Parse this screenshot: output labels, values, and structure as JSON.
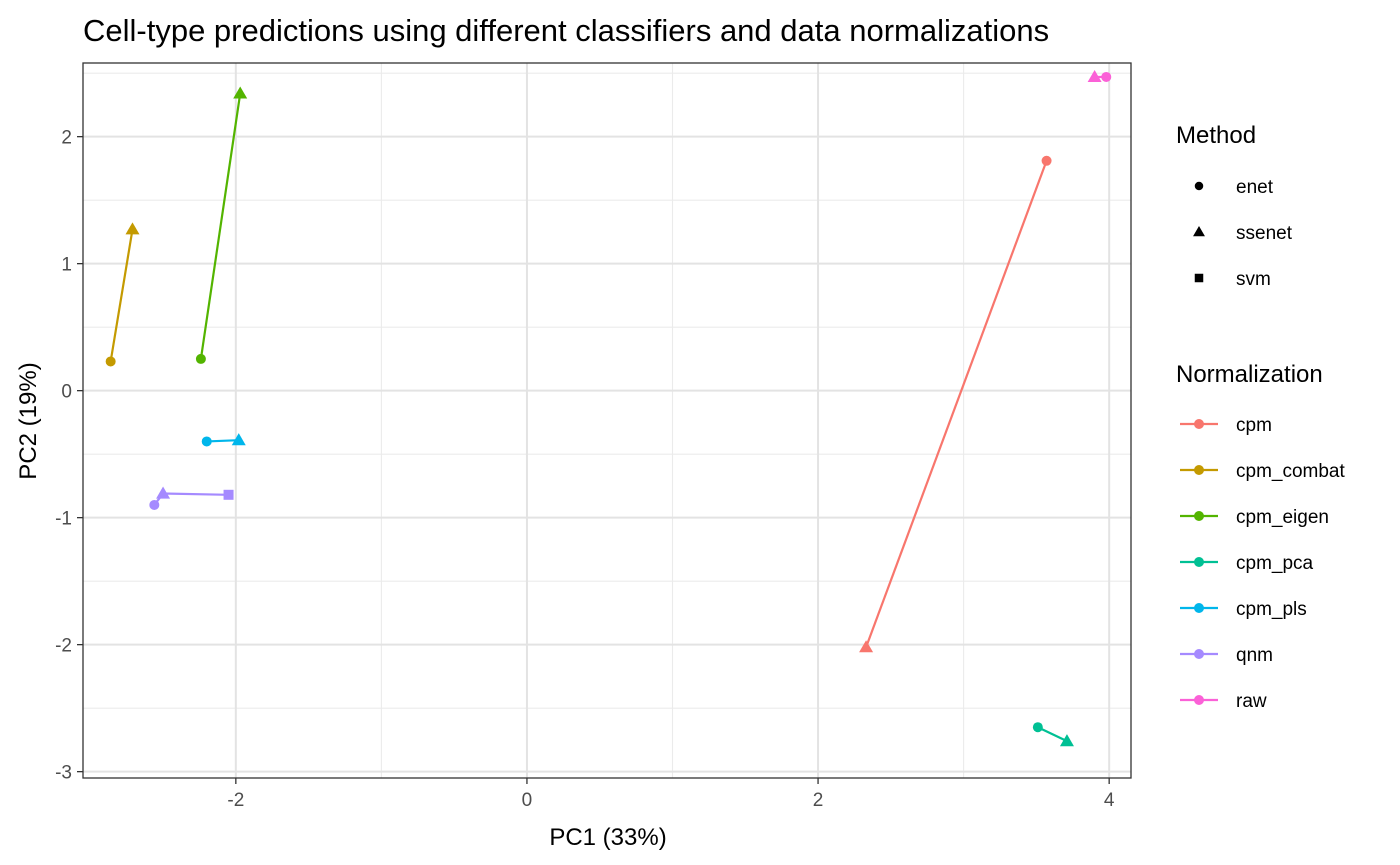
{
  "chart_data": {
    "type": "scatter",
    "title": "Cell-type predictions using different classifiers and data normalizations",
    "xlabel": "PC1 (33%)",
    "ylabel": "PC2 (19%)",
    "xlim": [
      -3.05,
      4.15
    ],
    "ylim": [
      -3.05,
      2.58
    ],
    "xticks": [
      -2,
      0,
      2,
      4
    ],
    "xtick_labels": [
      "-2",
      "0",
      "2",
      "4"
    ],
    "yticks": [
      -3,
      -2,
      -1,
      0,
      1,
      2
    ],
    "ytick_labels": [
      "-3",
      "-2",
      "-1",
      "0",
      "1",
      "2"
    ],
    "grid": true,
    "legend_position": "right",
    "legend_method_title": "Method",
    "legend_normalization_title": "Normalization",
    "methods": [
      {
        "name": "enet",
        "shape": "circle"
      },
      {
        "name": "ssenet",
        "shape": "triangle"
      },
      {
        "name": "svm",
        "shape": "square"
      }
    ],
    "series": [
      {
        "name": "cpm",
        "color": "#F8766D",
        "points": [
          {
            "method": "enet",
            "x": 3.57,
            "y": 1.81
          },
          {
            "method": "ssenet",
            "x": 2.33,
            "y": -2.02
          }
        ]
      },
      {
        "name": "cpm_combat",
        "color": "#C49A00",
        "points": [
          {
            "method": "enet",
            "x": -2.86,
            "y": 0.23
          },
          {
            "method": "ssenet",
            "x": -2.71,
            "y": 1.27
          }
        ]
      },
      {
        "name": "cpm_eigen",
        "color": "#53B400",
        "points": [
          {
            "method": "enet",
            "x": -2.24,
            "y": 0.25
          },
          {
            "method": "ssenet",
            "x": -1.97,
            "y": 2.34
          }
        ]
      },
      {
        "name": "cpm_pca",
        "color": "#00C094",
        "points": [
          {
            "method": "enet",
            "x": 3.51,
            "y": -2.65
          },
          {
            "method": "ssenet",
            "x": 3.71,
            "y": -2.76
          }
        ]
      },
      {
        "name": "cpm_pls",
        "color": "#00B6EB",
        "points": [
          {
            "method": "enet",
            "x": -2.2,
            "y": -0.4
          },
          {
            "method": "ssenet",
            "x": -1.98,
            "y": -0.39
          }
        ]
      },
      {
        "name": "qnm",
        "color": "#A58AFF",
        "points": [
          {
            "method": "enet",
            "x": -2.56,
            "y": -0.9
          },
          {
            "method": "ssenet",
            "x": -2.5,
            "y": -0.81
          },
          {
            "method": "svm",
            "x": -2.05,
            "y": -0.82
          }
        ]
      },
      {
        "name": "raw",
        "color": "#FB61D7",
        "points": [
          {
            "method": "ssenet",
            "x": 3.9,
            "y": 2.47
          },
          {
            "method": "enet",
            "x": 3.98,
            "y": 2.47
          }
        ]
      }
    ]
  }
}
